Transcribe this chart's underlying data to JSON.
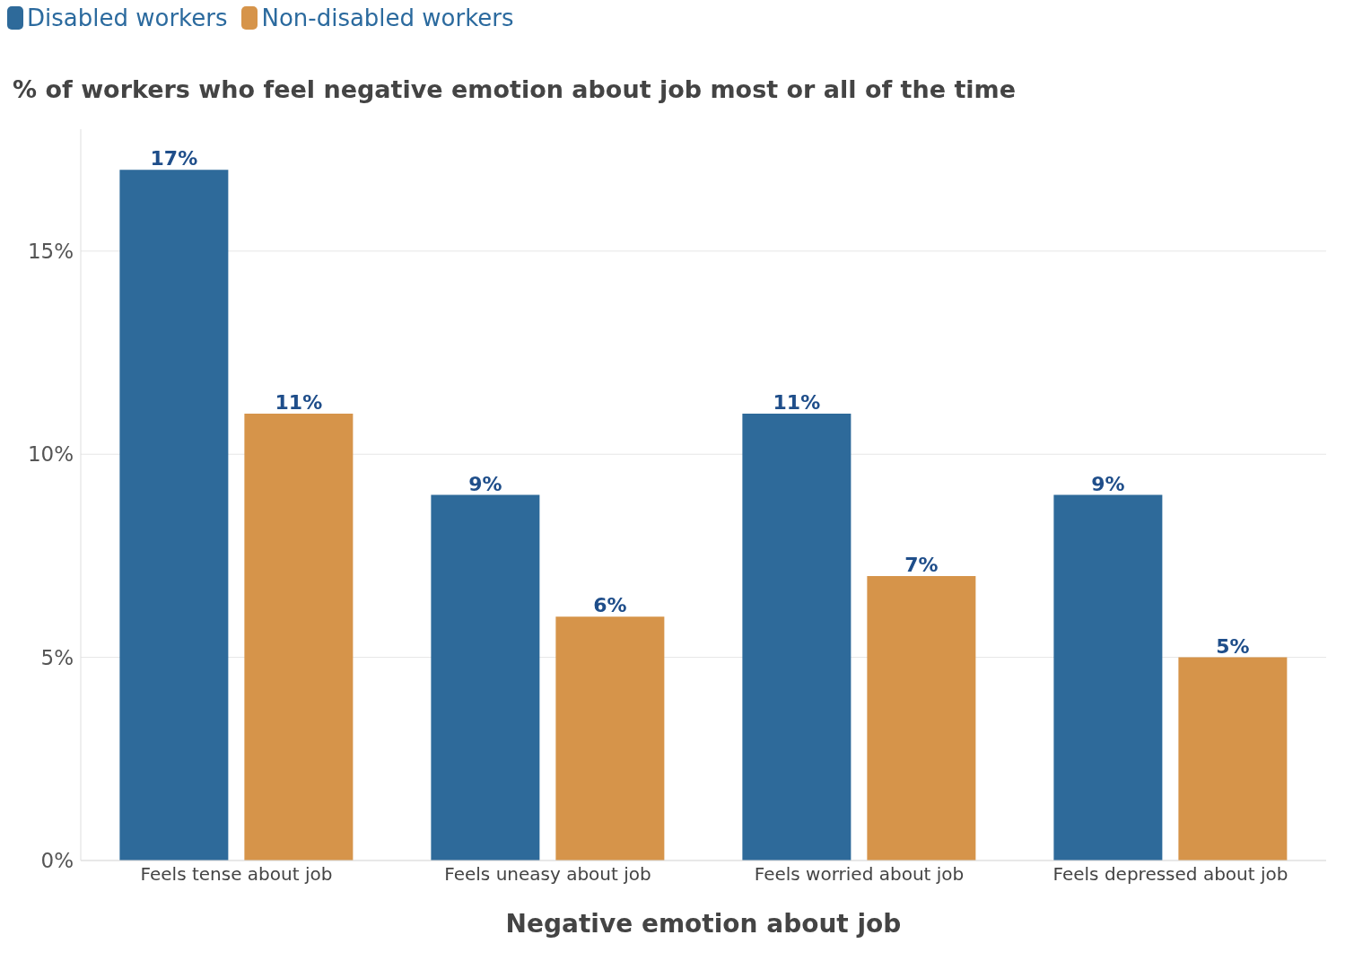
{
  "chart_data": {
    "type": "bar",
    "title": "% of workers who feel negative emotion about job most or all of the time",
    "xlabel": "Negative emotion about job",
    "categories": [
      "Feels tense about job",
      "Feels uneasy about job",
      "Feels worried about job",
      "Feels depressed about job"
    ],
    "series": [
      {
        "name": "Disabled workers",
        "color": "#2e6a9a",
        "values": [
          17,
          9,
          11,
          9
        ],
        "value_labels": [
          "17%",
          "9%",
          "11%",
          "9%"
        ]
      },
      {
        "name": "Non-disabled workers",
        "color": "#d6944a",
        "values": [
          11,
          6,
          7,
          5
        ],
        "value_labels": [
          "11%",
          "6%",
          "7%",
          "5%"
        ]
      }
    ],
    "ylim": [
      0,
      18
    ],
    "yticks": [
      {
        "value": 0,
        "label": "0%"
      },
      {
        "value": 5,
        "label": "5%"
      },
      {
        "value": 10,
        "label": "10%"
      },
      {
        "value": 15,
        "label": "15%"
      }
    ],
    "grid": "y",
    "legend": "top left"
  }
}
